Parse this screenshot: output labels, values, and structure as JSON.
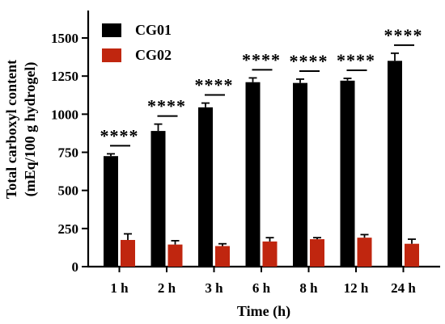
{
  "chart_data": {
    "type": "bar",
    "title": "",
    "xlabel": "Time (h)",
    "ylabel_line1": "Total carboxyl content",
    "ylabel_line2": "(mEq/100 g hydrogel)",
    "ylim": [
      0,
      1500
    ],
    "yticks": [
      "0",
      "250",
      "500",
      "750",
      "1000",
      "1250",
      "1500"
    ],
    "ytick_values": [
      0,
      250,
      500,
      750,
      1000,
      1250,
      1500
    ],
    "categories": [
      "1 h",
      "2 h",
      "3 h",
      "6 h",
      "8 h",
      "12 h",
      "24 h"
    ],
    "series": [
      {
        "name": "CG01",
        "color": "#000000",
        "values": [
          725,
          890,
          1045,
          1210,
          1205,
          1220,
          1350
        ],
        "errors": [
          15,
          45,
          28,
          28,
          25,
          15,
          50
        ]
      },
      {
        "name": "CG02",
        "color": "#c0260f",
        "values": [
          175,
          145,
          135,
          165,
          180,
          190,
          150
        ],
        "errors": [
          40,
          25,
          15,
          25,
          10,
          20,
          30
        ]
      }
    ],
    "significance": [
      "****",
      "****",
      "****",
      "****",
      "****",
      "****",
      "****"
    ],
    "legend_position": "top-left",
    "grid": false
  }
}
